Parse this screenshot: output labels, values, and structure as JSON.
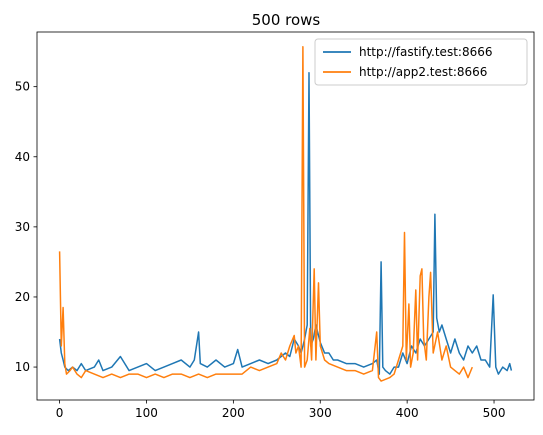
{
  "chart_data": {
    "type": "line",
    "title": "500 rows",
    "xlabel": "",
    "ylabel": "",
    "xlim": [
      -26,
      546
    ],
    "ylim": [
      5.3,
      57.8
    ],
    "xticks": [
      0,
      100,
      200,
      300,
      400,
      500
    ],
    "yticks": [
      10,
      20,
      30,
      40,
      50
    ],
    "grid": false,
    "legend_position": "top-right",
    "series": [
      {
        "name": "http://fastify.test:8666",
        "color": "#1f77b4",
        "points": [
          [
            0,
            14
          ],
          [
            2,
            12
          ],
          [
            4,
            11
          ],
          [
            6,
            10
          ],
          [
            10,
            9.5
          ],
          [
            15,
            10
          ],
          [
            20,
            9.5
          ],
          [
            25,
            10.5
          ],
          [
            30,
            9.5
          ],
          [
            40,
            10
          ],
          [
            45,
            11
          ],
          [
            50,
            9.5
          ],
          [
            60,
            10
          ],
          [
            70,
            11.5
          ],
          [
            80,
            9.5
          ],
          [
            90,
            10
          ],
          [
            100,
            10.5
          ],
          [
            110,
            9.5
          ],
          [
            120,
            10
          ],
          [
            130,
            10.5
          ],
          [
            140,
            11
          ],
          [
            150,
            10
          ],
          [
            155,
            11
          ],
          [
            160,
            15
          ],
          [
            162,
            10.5
          ],
          [
            170,
            10
          ],
          [
            180,
            11
          ],
          [
            190,
            10
          ],
          [
            200,
            10.5
          ],
          [
            205,
            12.5
          ],
          [
            210,
            10
          ],
          [
            220,
            10.5
          ],
          [
            230,
            11
          ],
          [
            240,
            10.5
          ],
          [
            250,
            11
          ],
          [
            260,
            12
          ],
          [
            265,
            11.5
          ],
          [
            270,
            14
          ],
          [
            275,
            13
          ],
          [
            278,
            12
          ],
          [
            280,
            13
          ],
          [
            282,
            14
          ],
          [
            285,
            16
          ],
          [
            287,
            52
          ],
          [
            289,
            13
          ],
          [
            292,
            14
          ],
          [
            295,
            16
          ],
          [
            300,
            13.5
          ],
          [
            305,
            12
          ],
          [
            310,
            12
          ],
          [
            315,
            11
          ],
          [
            320,
            11
          ],
          [
            330,
            10.5
          ],
          [
            340,
            10.5
          ],
          [
            350,
            10
          ],
          [
            360,
            10.5
          ],
          [
            365,
            11
          ],
          [
            368,
            9
          ],
          [
            370,
            25
          ],
          [
            372,
            10
          ],
          [
            375,
            9.5
          ],
          [
            380,
            9
          ],
          [
            385,
            10
          ],
          [
            390,
            10
          ],
          [
            395,
            12
          ],
          [
            400,
            10.5
          ],
          [
            405,
            13
          ],
          [
            410,
            12
          ],
          [
            415,
            14
          ],
          [
            420,
            13
          ],
          [
            425,
            14
          ],
          [
            430,
            15
          ],
          [
            432,
            31.8
          ],
          [
            434,
            17
          ],
          [
            437,
            15
          ],
          [
            440,
            16
          ],
          [
            445,
            14
          ],
          [
            450,
            12
          ],
          [
            455,
            14
          ],
          [
            460,
            12
          ],
          [
            465,
            11
          ],
          [
            470,
            13
          ],
          [
            475,
            12
          ],
          [
            480,
            13
          ],
          [
            485,
            11
          ],
          [
            490,
            11
          ],
          [
            495,
            10
          ],
          [
            499,
            20.3
          ],
          [
            502,
            10
          ],
          [
            505,
            9
          ],
          [
            510,
            10
          ],
          [
            515,
            9.5
          ],
          [
            518,
            10.5
          ],
          [
            520,
            9.5
          ]
        ]
      },
      {
        "name": "http://app2.test:8666",
        "color": "#ff7f0e",
        "points": [
          [
            0,
            26.5
          ],
          [
            2,
            13
          ],
          [
            4,
            18.5
          ],
          [
            6,
            10.5
          ],
          [
            8,
            9
          ],
          [
            12,
            9.5
          ],
          [
            15,
            10
          ],
          [
            20,
            9
          ],
          [
            25,
            8.5
          ],
          [
            30,
            9.5
          ],
          [
            40,
            9
          ],
          [
            50,
            8.5
          ],
          [
            60,
            9
          ],
          [
            70,
            8.5
          ],
          [
            80,
            9
          ],
          [
            90,
            9
          ],
          [
            100,
            8.5
          ],
          [
            110,
            9
          ],
          [
            120,
            8.5
          ],
          [
            130,
            9
          ],
          [
            140,
            9
          ],
          [
            150,
            8.5
          ],
          [
            160,
            9
          ],
          [
            170,
            8.5
          ],
          [
            180,
            9
          ],
          [
            190,
            9
          ],
          [
            200,
            9
          ],
          [
            210,
            9
          ],
          [
            220,
            10
          ],
          [
            230,
            9.5
          ],
          [
            240,
            10
          ],
          [
            250,
            10.5
          ],
          [
            255,
            12
          ],
          [
            260,
            11
          ],
          [
            265,
            13
          ],
          [
            270,
            14.5
          ],
          [
            272,
            12
          ],
          [
            275,
            13
          ],
          [
            278,
            10
          ],
          [
            280,
            55.7
          ],
          [
            282,
            10
          ],
          [
            285,
            11
          ],
          [
            288,
            15.5
          ],
          [
            290,
            11
          ],
          [
            293,
            24
          ],
          [
            295,
            11
          ],
          [
            298,
            22
          ],
          [
            300,
            13
          ],
          [
            305,
            11
          ],
          [
            310,
            10.5
          ],
          [
            320,
            10
          ],
          [
            330,
            9.5
          ],
          [
            340,
            9.5
          ],
          [
            350,
            9
          ],
          [
            360,
            9.5
          ],
          [
            365,
            15
          ],
          [
            367,
            8.5
          ],
          [
            370,
            8
          ],
          [
            380,
            8.5
          ],
          [
            385,
            9
          ],
          [
            390,
            11
          ],
          [
            395,
            13
          ],
          [
            397,
            29.2
          ],
          [
            399,
            11
          ],
          [
            402,
            19
          ],
          [
            404,
            10
          ],
          [
            407,
            12
          ],
          [
            410,
            21
          ],
          [
            412,
            11
          ],
          [
            415,
            23
          ],
          [
            417,
            24
          ],
          [
            419,
            14
          ],
          [
            422,
            11
          ],
          [
            425,
            20
          ],
          [
            427,
            23.5
          ],
          [
            430,
            12
          ],
          [
            435,
            15
          ],
          [
            440,
            11
          ],
          [
            445,
            13
          ],
          [
            450,
            10
          ],
          [
            455,
            9.5
          ],
          [
            460,
            9
          ],
          [
            465,
            10
          ],
          [
            470,
            8.5
          ],
          [
            475,
            10
          ]
        ]
      }
    ]
  }
}
